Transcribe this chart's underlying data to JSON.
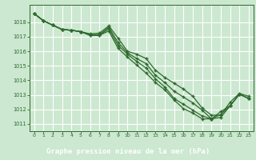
{
  "title": "Graphe pression niveau de la mer (hPa)",
  "bg_color": "#cce8d0",
  "plot_bg_color": "#cce8d0",
  "grid_color": "#ffffff",
  "line_color": "#2d6a2d",
  "label_bar_color": "#3d7a3d",
  "label_text_color": "#ffffff",
  "xlim": [
    -0.5,
    23.5
  ],
  "ylim": [
    1010.5,
    1019.2
  ],
  "xtick_labels": [
    "0",
    "1",
    "2",
    "3",
    "4",
    "5",
    "6",
    "7",
    "8",
    "9",
    "10",
    "11",
    "12",
    "13",
    "14",
    "15",
    "16",
    "17",
    "18",
    "19",
    "20",
    "21",
    "22",
    "23"
  ],
  "yticks": [
    1011,
    1012,
    1013,
    1014,
    1015,
    1016,
    1017,
    1018
  ],
  "series": [
    [
      1018.6,
      1018.1,
      1017.8,
      1017.5,
      1017.45,
      1017.35,
      1017.2,
      1017.25,
      1017.75,
      1016.9,
      1016.0,
      1015.8,
      1015.5,
      1014.7,
      1014.2,
      1013.8,
      1013.4,
      1012.9,
      1012.1,
      1011.6,
      1011.6,
      1012.5,
      1013.1,
      1012.9
    ],
    [
      1018.6,
      1018.1,
      1017.8,
      1017.5,
      1017.45,
      1017.35,
      1017.15,
      1017.15,
      1017.65,
      1016.6,
      1015.9,
      1015.5,
      1015.15,
      1014.35,
      1013.85,
      1013.25,
      1012.85,
      1012.45,
      1011.95,
      1011.35,
      1011.45,
      1012.25,
      1013.05,
      1012.75
    ],
    [
      1018.6,
      1018.1,
      1017.8,
      1017.5,
      1017.45,
      1017.35,
      1017.1,
      1017.1,
      1017.55,
      1016.4,
      1015.8,
      1015.3,
      1014.85,
      1014.1,
      1013.55,
      1012.75,
      1012.35,
      1011.95,
      1011.55,
      1011.35,
      1011.85,
      1012.25,
      1013.05,
      1012.75
    ],
    [
      1018.6,
      1018.1,
      1017.8,
      1017.5,
      1017.45,
      1017.35,
      1017.1,
      1017.1,
      1017.4,
      1016.2,
      1015.6,
      1015.05,
      1014.5,
      1013.85,
      1013.35,
      1012.65,
      1012.05,
      1011.75,
      1011.35,
      1011.35,
      1011.65,
      1012.25,
      1013.05,
      1012.75
    ]
  ]
}
